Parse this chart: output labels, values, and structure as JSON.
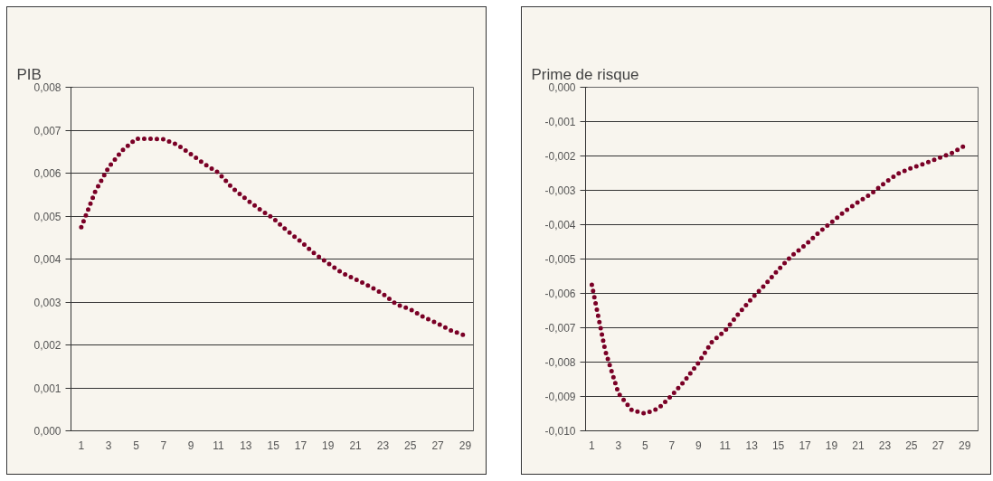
{
  "chart_data": [
    {
      "type": "line",
      "title": "PIB",
      "x": [
        1,
        2,
        3,
        4,
        5,
        6,
        7,
        8,
        9,
        10,
        11,
        12,
        13,
        14,
        15,
        16,
        17,
        18,
        19,
        20,
        21,
        22,
        23,
        24,
        25,
        26,
        27,
        28,
        29
      ],
      "series": [
        {
          "color": "#7a0026",
          "values": [
            0.00474,
            0.00556,
            0.00614,
            0.00653,
            0.0068,
            0.0068,
            0.00679,
            0.00666,
            0.00644,
            0.00621,
            0.00601,
            0.00566,
            0.0054,
            0.00516,
            0.00495,
            0.00466,
            0.00441,
            0.00413,
            0.0039,
            0.00368,
            0.00353,
            0.00337,
            0.00319,
            0.00294,
            0.00283,
            0.00264,
            0.0025,
            0.00233,
            0.00222
          ]
        }
      ],
      "xlim": [
        0.25,
        29.6
      ],
      "xticks": [
        1,
        3,
        5,
        7,
        9,
        11,
        13,
        15,
        17,
        19,
        21,
        23,
        25,
        27,
        29
      ],
      "ylim": [
        0,
        0.008
      ],
      "yticks": [
        {
          "value": 0,
          "label": "0,000"
        },
        {
          "value": 0.001,
          "label": "0,001"
        },
        {
          "value": 0.002,
          "label": "0,002"
        },
        {
          "value": 0.003,
          "label": "0,003"
        },
        {
          "value": 0.004,
          "label": "0,004"
        },
        {
          "value": 0.005,
          "label": "0,005"
        },
        {
          "value": 0.006,
          "label": "0,006"
        },
        {
          "value": 0.007,
          "label": "0,007"
        },
        {
          "value": 0.008,
          "label": "0,008"
        }
      ],
      "grid": "y",
      "line_style": "dotted",
      "marker": "none"
    },
    {
      "type": "line",
      "title": "Prime de risque",
      "x": [
        1,
        2,
        3,
        4,
        5,
        6,
        7,
        8,
        9,
        10,
        11,
        12,
        13,
        14,
        15,
        16,
        17,
        18,
        19,
        20,
        21,
        22,
        23,
        24,
        25,
        26,
        27,
        28,
        29
      ],
      "series": [
        {
          "color": "#7a0026",
          "values": [
            -0.00575,
            -0.00766,
            -0.00891,
            -0.0094,
            -0.0095,
            -0.00935,
            -0.00897,
            -0.00853,
            -0.00802,
            -0.00742,
            -0.00709,
            -0.0066,
            -0.00615,
            -0.00575,
            -0.00531,
            -0.00491,
            -0.0046,
            -0.00424,
            -0.00393,
            -0.00361,
            -0.00334,
            -0.00309,
            -0.00278,
            -0.00251,
            -0.00235,
            -0.00222,
            -0.00207,
            -0.00192,
            -0.0017
          ]
        }
      ],
      "xlim": [
        0.53,
        30.0
      ],
      "xticks": [
        1,
        3,
        5,
        7,
        9,
        11,
        13,
        15,
        17,
        19,
        21,
        23,
        25,
        27,
        29
      ],
      "ylim": [
        -0.01,
        0
      ],
      "yticks": [
        {
          "value": -0.01,
          "label": "-0,010"
        },
        {
          "value": -0.009,
          "label": "-0,009"
        },
        {
          "value": -0.008,
          "label": "-0,008"
        },
        {
          "value": -0.007,
          "label": "-0,007"
        },
        {
          "value": -0.006,
          "label": "-0,006"
        },
        {
          "value": -0.005,
          "label": "-0,005"
        },
        {
          "value": -0.004,
          "label": "-0,004"
        },
        {
          "value": -0.003,
          "label": "-0,003"
        },
        {
          "value": -0.002,
          "label": "-0,002"
        },
        {
          "value": -0.001,
          "label": "-0,001"
        },
        {
          "value": 0,
          "label": "0,000"
        }
      ],
      "grid": "y",
      "line_style": "dotted",
      "marker": "none"
    }
  ]
}
